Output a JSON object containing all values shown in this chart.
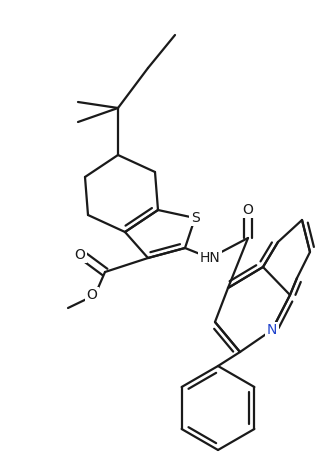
{
  "bg_color": "#ffffff",
  "line_color": "#1a1a1a",
  "bond_lw": 1.6,
  "figsize": [
    3.18,
    4.72
  ],
  "dpi": 100,
  "xlim": [
    0,
    318
  ],
  "ylim": [
    0,
    472
  ]
}
